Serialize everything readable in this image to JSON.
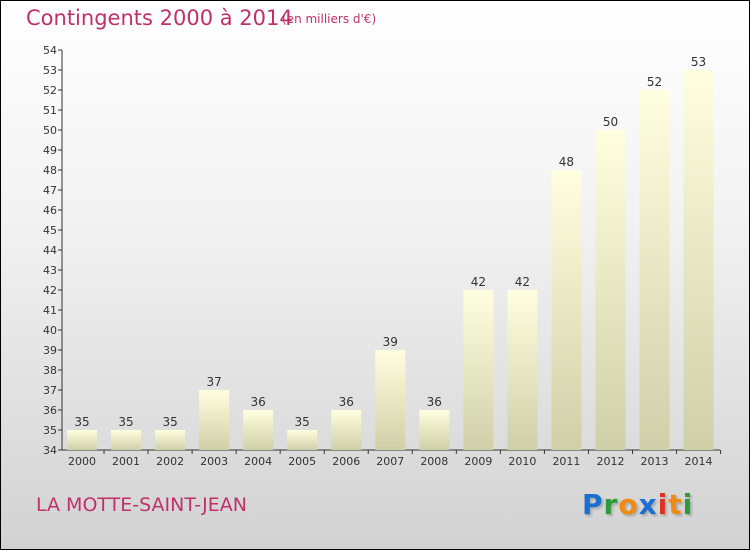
{
  "title": "Contingents 2000 à 2014",
  "subtitle": "(en milliers d'€)",
  "place": "LA MOTTE-SAINT-JEAN",
  "logo": {
    "text": "Proxiti",
    "letters": [
      {
        "c": "P",
        "color": "#1a6fd0"
      },
      {
        "c": "r",
        "color": "#2a9a3a"
      },
      {
        "c": "o",
        "color": "#f08a10"
      },
      {
        "c": "x",
        "color": "#1a6fd0"
      },
      {
        "c": "i",
        "color": "#e03020"
      },
      {
        "c": "t",
        "color": "#f08a10"
      },
      {
        "c": "i",
        "color": "#2a9a3a"
      }
    ]
  },
  "colors": {
    "title": "#c0306a",
    "bar_top": "#ffffe0",
    "bar_bottom": "#cfcfa8"
  },
  "chart_data": {
    "type": "bar",
    "title": "Contingents 2000 à 2014",
    "categories": [
      "2000",
      "2001",
      "2002",
      "2003",
      "2004",
      "2005",
      "2006",
      "2007",
      "2008",
      "2009",
      "2010",
      "2011",
      "2012",
      "2013",
      "2014"
    ],
    "values": [
      35,
      35,
      35,
      37,
      36,
      35,
      36,
      39,
      36,
      42,
      42,
      48,
      50,
      52,
      53
    ],
    "ylim": [
      34,
      54
    ],
    "yticks": [
      34,
      35,
      36,
      37,
      38,
      39,
      40,
      41,
      42,
      43,
      44,
      45,
      46,
      47,
      48,
      49,
      50,
      51,
      52,
      53,
      54
    ],
    "xlabel": "",
    "ylabel": "",
    "grid": false
  }
}
